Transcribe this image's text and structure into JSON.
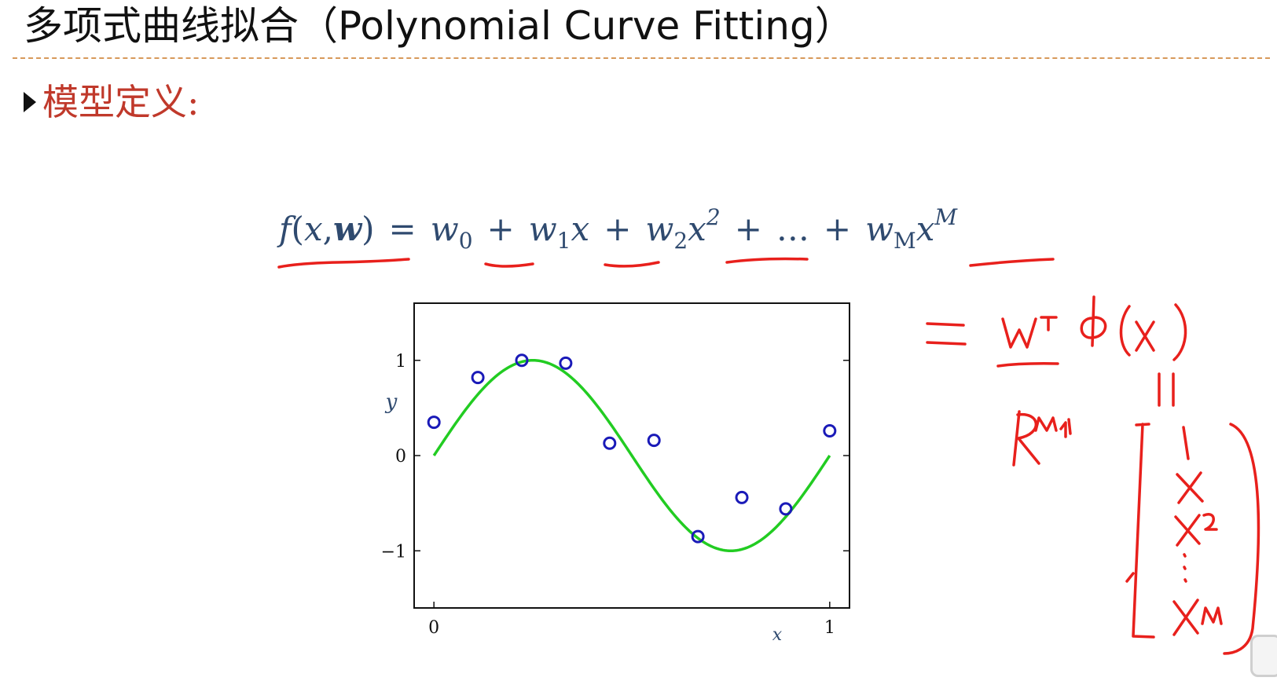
{
  "slide": {
    "title": "多项式曲线拟合（Polynomial Curve Fitting）",
    "bullet_text": "模型定义:"
  },
  "formula": {
    "lhs_f": "f",
    "lhs_open": "(",
    "lhs_x": "x",
    "lhs_comma": ",",
    "lhs_w": "w",
    "lhs_close": ")",
    "eq": "=",
    "t0_w": "w",
    "t0_sub": "0",
    "plus1": "+",
    "t1_w": "w",
    "t1_sub": "1",
    "t1_x": "x",
    "plus2": "+",
    "t2_w": "w",
    "t2_sub": "2",
    "t2_x": "x",
    "t2_sup": "2",
    "plus3": "+",
    "ellipsis": "…",
    "plus4": "+",
    "tM_w": "w",
    "tM_sub": "M",
    "tM_x": "x",
    "tM_sup": "M"
  },
  "colors": {
    "curve": "#22cc22",
    "points": "#1a1ab8",
    "annotation": "#e8201c",
    "formula": "#2f4a6f",
    "bullet": "#c0392b"
  },
  "chart_data": {
    "type": "scatter",
    "xlabel": "x",
    "ylabel": "y",
    "xlim": [
      -0.05,
      1.05
    ],
    "ylim": [
      -1.6,
      1.6
    ],
    "xticks": [
      {
        "value": 0,
        "label": "0"
      },
      {
        "value": 1,
        "label": "1"
      }
    ],
    "yticks": [
      {
        "value": -1,
        "label": "−1"
      },
      {
        "value": 0,
        "label": "0"
      },
      {
        "value": 1,
        "label": "1"
      }
    ],
    "grid": false,
    "legend": "none",
    "series": [
      {
        "kind": "curve",
        "function": "sin(2*pi*x)",
        "x_range": [
          0,
          1
        ]
      },
      {
        "kind": "points",
        "x": [
          0.0,
          0.111,
          0.222,
          0.333,
          0.444,
          0.556,
          0.667,
          0.778,
          0.889,
          1.0
        ],
        "y": [
          0.35,
          0.82,
          1.0,
          0.97,
          0.13,
          0.16,
          -0.85,
          -0.44,
          -0.56,
          0.26
        ]
      }
    ]
  },
  "handwriting": {
    "lines": [
      "= wᵀ φ(x)",
      "||",
      "ℝ^(M+1)",
      "[1, x, x², ⋮, x^M]"
    ]
  }
}
